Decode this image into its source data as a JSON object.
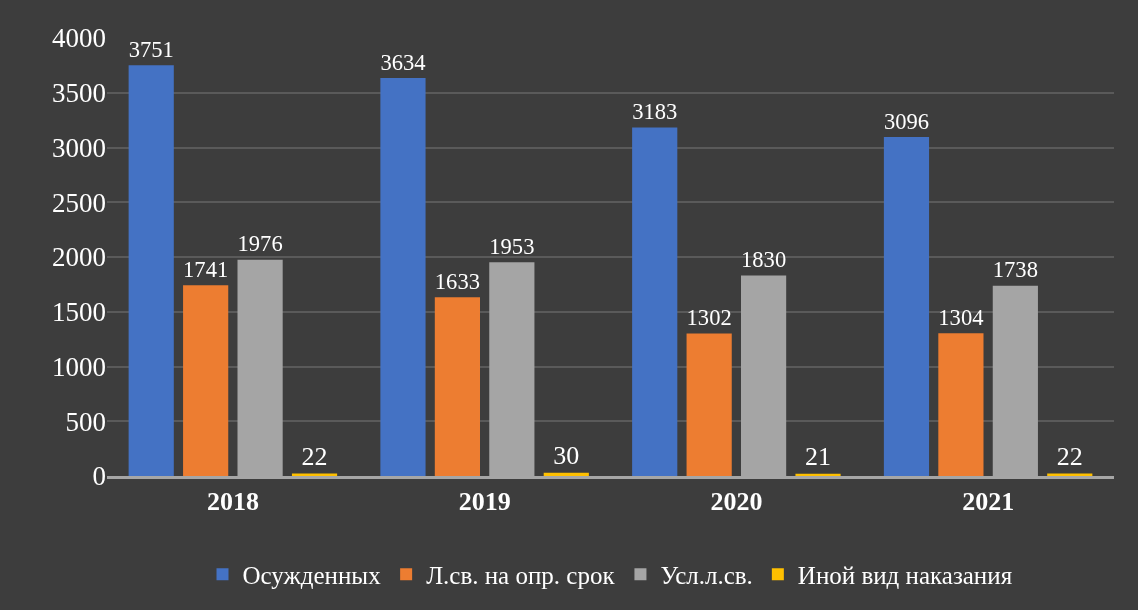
{
  "chart_data": {
    "type": "bar",
    "categories": [
      "2018",
      "2019",
      "2020",
      "2021"
    ],
    "series": [
      {
        "name": "Осужденных",
        "color": "#4472c4",
        "values": [
          3751,
          3634,
          3183,
          3096
        ]
      },
      {
        "name": "Л.св. на опр. срок",
        "color": "#ed7d31",
        "values": [
          1741,
          1633,
          1302,
          1304
        ]
      },
      {
        "name": "Усл.л.св.",
        "color": "#a5a5a5",
        "values": [
          1976,
          1953,
          1830,
          1738
        ]
      },
      {
        "name": "Иной вид наказания",
        "color": "#ffc000",
        "values": [
          22,
          30,
          21,
          22
        ]
      }
    ],
    "ylim": [
      0,
      4000
    ],
    "yticks": [
      0,
      500,
      1000,
      1500,
      2000,
      2500,
      3000,
      3500,
      4000
    ],
    "grid": "y",
    "legend": "bottom",
    "data_labels": true
  }
}
